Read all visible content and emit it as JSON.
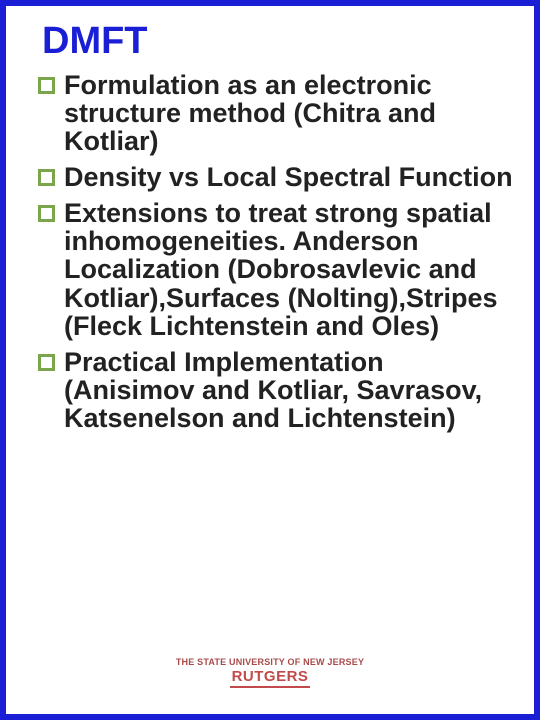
{
  "title": "DMFT",
  "title_color": "#1a1fd6",
  "border_color": "#1a1fd6",
  "bullet_marker_color": "#7aa54a",
  "text_color": "#222222",
  "bullet_fontsize": 27,
  "title_fontsize": 38,
  "bullets": [
    "Formulation as an electronic structure method (Chitra and Kotliar)",
    "Density vs Local Spectral Function",
    "Extensions to treat strong spatial inhomogeneities. Anderson Localization (Dobrosavlevic and Kotliar),Surfaces (Nolting),Stripes (Fleck Lichtenstein and Oles)",
    "Practical Implementation (Anisimov and Kotliar, Savrasov, Katsenelson and Lichtenstein)"
  ],
  "footer": {
    "top": "THE STATE UNIVERSITY OF NEW JERSEY",
    "main": "RUTGERS",
    "color": "#c24a4a"
  }
}
